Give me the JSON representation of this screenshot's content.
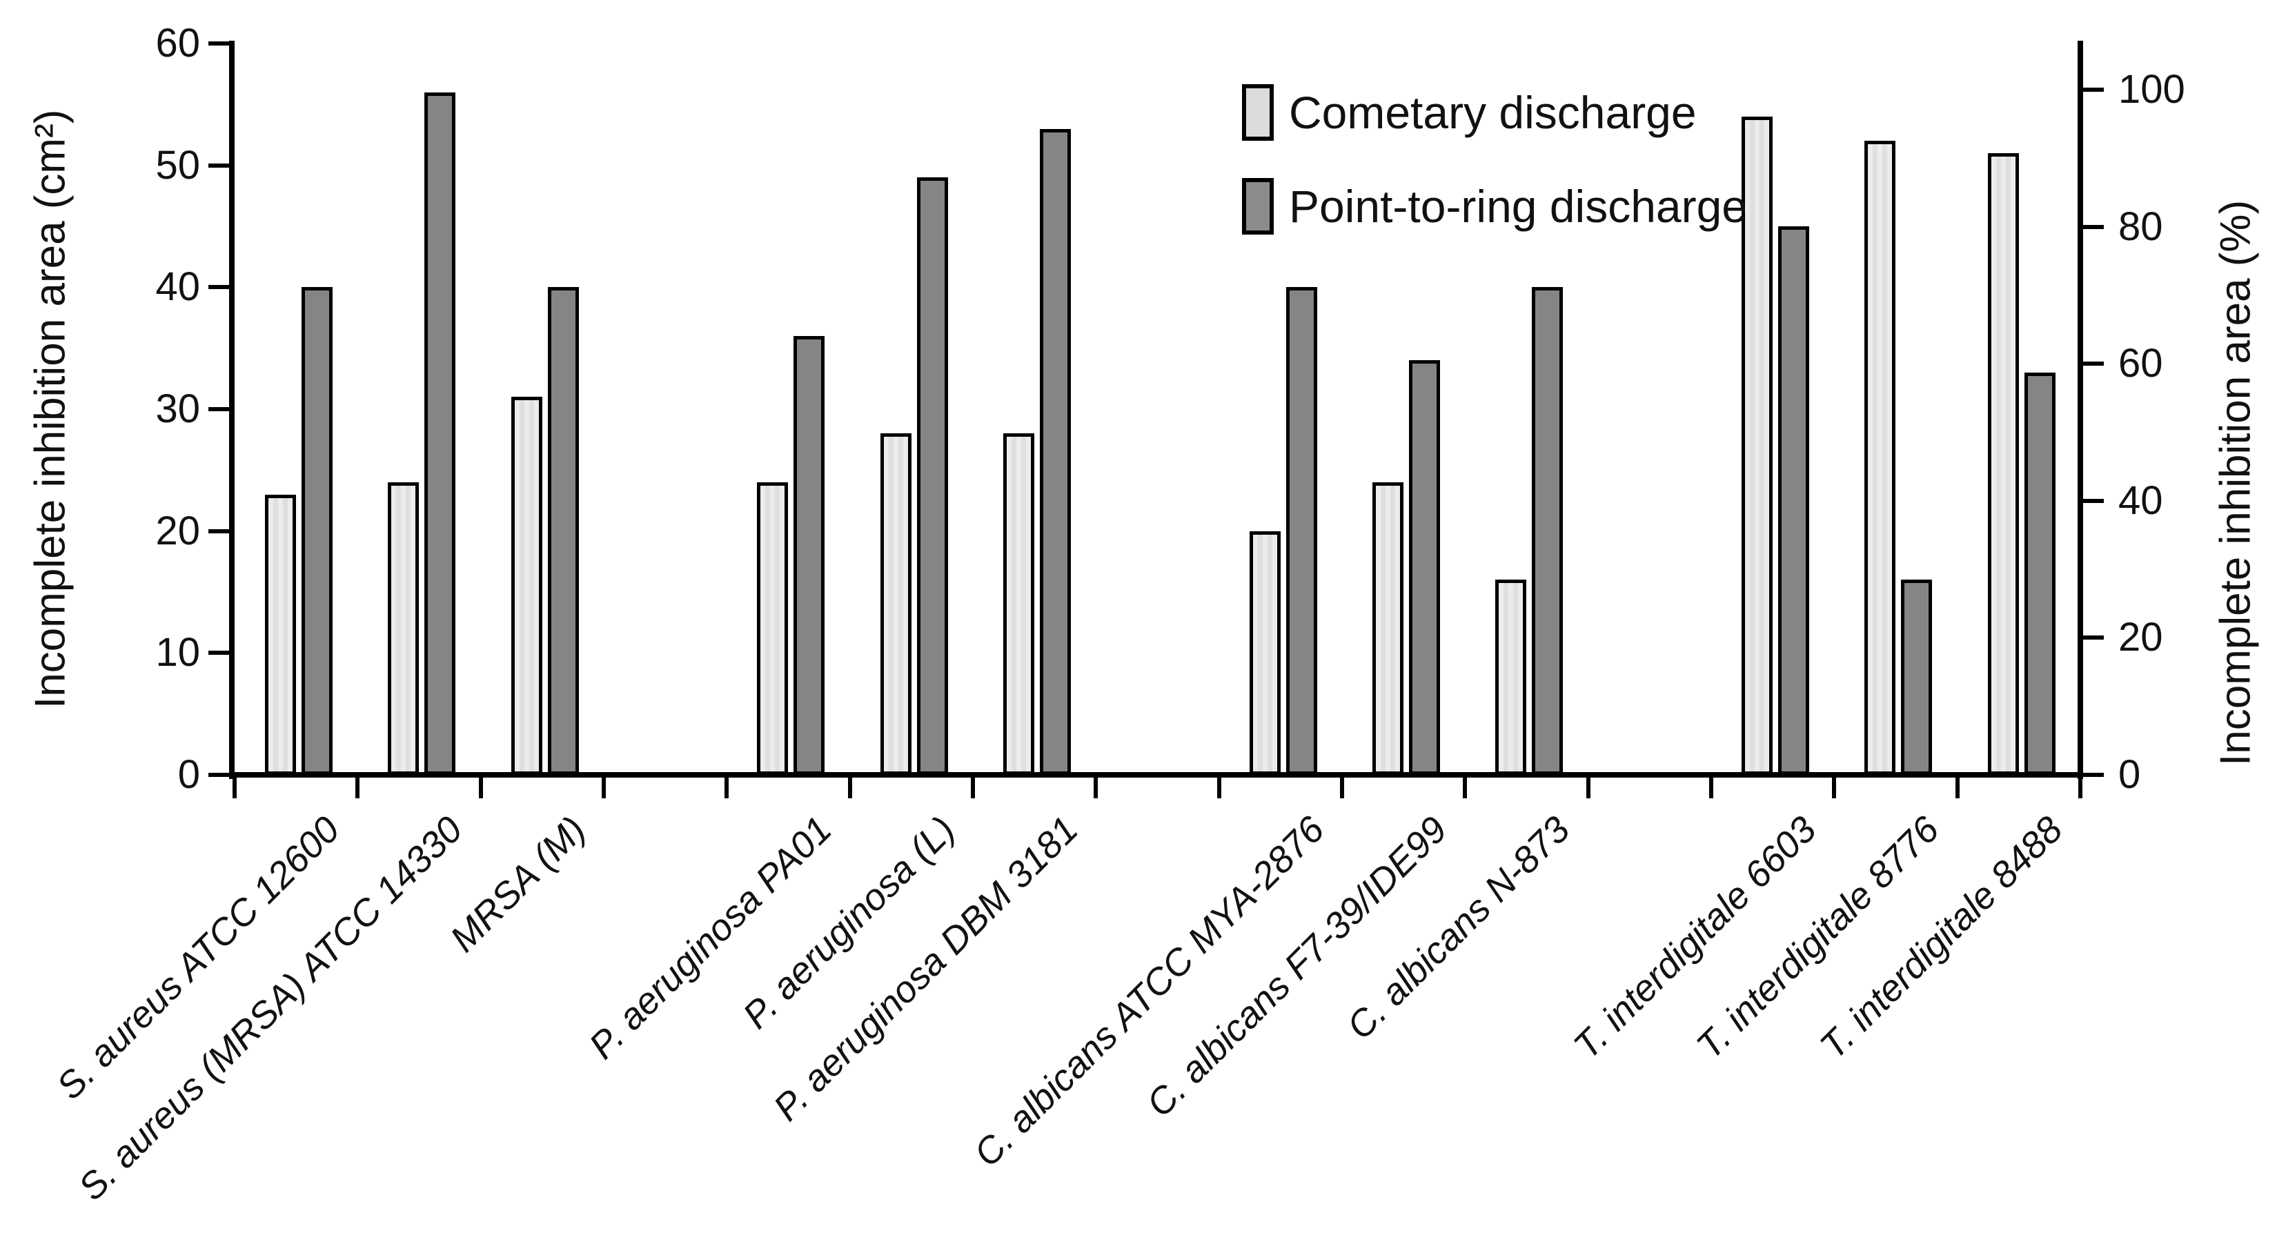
{
  "chart_data": {
    "type": "bar",
    "title": "",
    "categories": [
      "S. aureus ATCC 12600",
      "S. aureus (MRSA) ATCC 14330",
      "MRSA (M)",
      "P. aeruginosa PA01",
      "P. aeruginosa (L)",
      "P. aeruginosa DBM 3181",
      "C. albicans ATCC MYA-2876",
      "C. albicans F7-39/IDE99",
      "C. albicans N-873",
      "T. interdigitale 6603",
      "T. interdigitale 8776",
      "T. interdigitale 8488"
    ],
    "series": [
      {
        "name": "Cometary discharge",
        "values": [
          23,
          24,
          31,
          24,
          28,
          28,
          20,
          24,
          16,
          54,
          52,
          51
        ],
        "color": "#e6e6e6"
      },
      {
        "name": "Point-to-ring discharge",
        "values": [
          40,
          56,
          40,
          36,
          49,
          53,
          40,
          34,
          40,
          45,
          16,
          33
        ],
        "color": "#858585"
      }
    ],
    "left_axis": {
      "label": "Incomplete inhibition area (cm²)",
      "min": 0,
      "max": 60,
      "step": 10,
      "ticks": [
        0,
        10,
        20,
        30,
        40,
        50,
        60
      ]
    },
    "right_axis": {
      "label": "Incomplete inhibition area (%)",
      "min": 0,
      "max": 100,
      "step": 20,
      "ticks": [
        0,
        20,
        40,
        60,
        80,
        100
      ],
      "cm2_equivalent_of_100pct": 56.4
    },
    "layout": {
      "total_slots": 15,
      "occupied_slots": [
        0,
        1,
        2,
        4,
        5,
        6,
        8,
        9,
        10,
        12,
        13,
        14
      ],
      "legend_position": "top-right-inside",
      "grid": false,
      "bar_values_in_left_axis_units": true
    }
  }
}
